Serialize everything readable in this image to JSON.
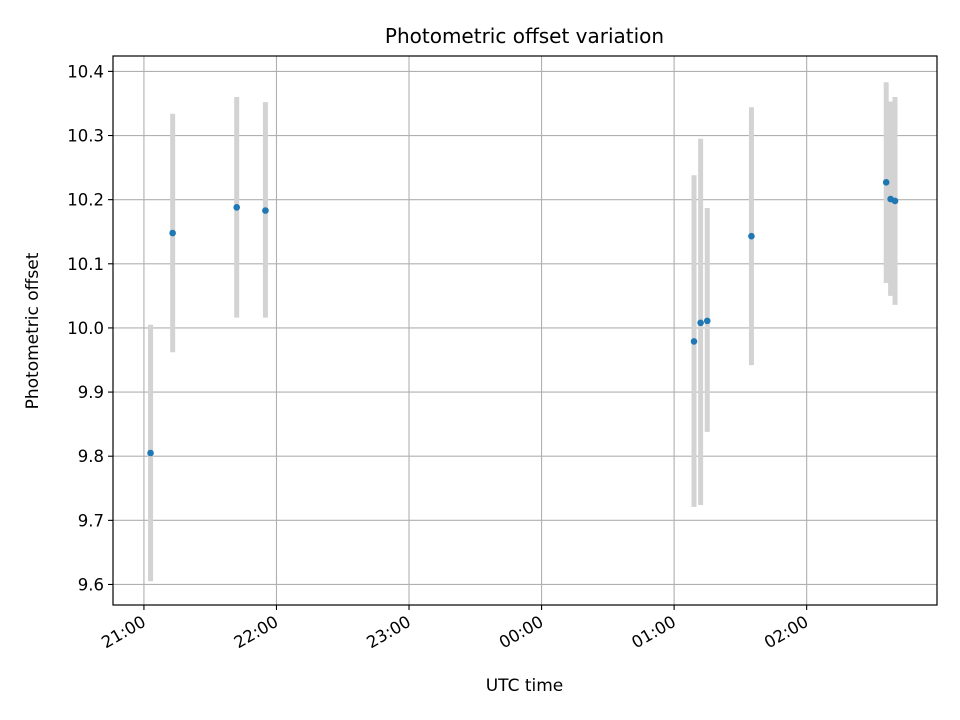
{
  "chart_data": {
    "type": "scatter",
    "title": "Photometric offset variation",
    "xlabel": "UTC time",
    "ylabel": "Photometric offset",
    "x_tick_labels": [
      "21:00",
      "22:00",
      "23:00",
      "00:00",
      "01:00",
      "02:00"
    ],
    "y_tick_labels": [
      "9.6",
      "9.7",
      "9.8",
      "9.9",
      "10.0",
      "10.1",
      "10.2",
      "10.3",
      "10.4"
    ],
    "x_ticks": [
      "21:00",
      "22:00",
      "23:00",
      "00:00",
      "01:00",
      "02:00"
    ],
    "y_ticks": [
      9.6,
      9.7,
      9.8,
      9.9,
      10.0,
      10.1,
      10.2,
      10.3,
      10.4
    ],
    "xlim": [
      "20:46",
      "02:59"
    ],
    "ylim": [
      9.568,
      10.424
    ],
    "grid": true,
    "series": [
      {
        "marker_color": "#1f77b4",
        "errorbar_color": "#d3d3d3",
        "points": [
          {
            "x": "21:03",
            "y": 9.805,
            "yerr_low": 9.605,
            "yerr_high": 10.005
          },
          {
            "x": "21:13",
            "y": 10.148,
            "yerr_low": 9.962,
            "yerr_high": 10.334
          },
          {
            "x": "21:42",
            "y": 10.188,
            "yerr_low": 10.016,
            "yerr_high": 10.36
          },
          {
            "x": "21:55",
            "y": 10.183,
            "yerr_low": 10.016,
            "yerr_high": 10.352
          },
          {
            "x": "01:09",
            "y": 9.979,
            "yerr_low": 9.721,
            "yerr_high": 10.238
          },
          {
            "x": "01:12",
            "y": 10.008,
            "yerr_low": 9.724,
            "yerr_high": 10.295
          },
          {
            "x": "01:15",
            "y": 10.011,
            "yerr_low": 9.838,
            "yerr_high": 10.187
          },
          {
            "x": "01:35",
            "y": 10.143,
            "yerr_low": 9.942,
            "yerr_high": 10.344
          },
          {
            "x": "02:36",
            "y": 10.227,
            "yerr_low": 10.07,
            "yerr_high": 10.383
          },
          {
            "x": "02:38",
            "y": 10.201,
            "yerr_low": 10.05,
            "yerr_high": 10.353
          },
          {
            "x": "02:40",
            "y": 10.198,
            "yerr_low": 10.036,
            "yerr_high": 10.36
          }
        ]
      }
    ]
  }
}
